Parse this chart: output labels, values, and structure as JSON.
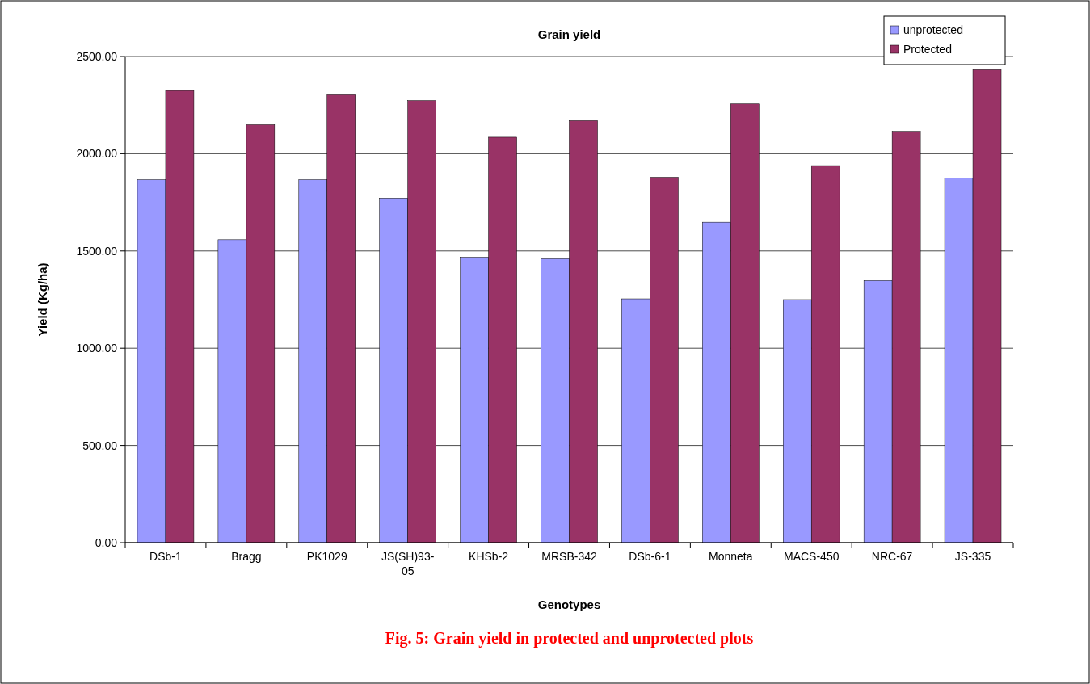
{
  "chart_data": {
    "type": "bar",
    "title": "Grain yield",
    "xlabel": "Genotypes",
    "ylabel": "Yield (Kg/ha)",
    "categories": [
      "DSb-1",
      "Bragg",
      "PK1029",
      "JS(SH)93-05",
      "KHSb-2",
      "MRSB-342",
      "DSb-6-1",
      "Monneta",
      "MACS-450",
      "NRC-67",
      "JS-335"
    ],
    "series": [
      {
        "name": "unprotected",
        "color": "#9999ff",
        "values": [
          1866,
          1558,
          1866,
          1772,
          1468,
          1460,
          1254,
          1648,
          1250,
          1348,
          1875
        ]
      },
      {
        "name": "Protected",
        "color": "#993366",
        "values": [
          2325,
          2149,
          2303,
          2273,
          2085,
          2170,
          1879,
          2256,
          1939,
          2115,
          2432
        ]
      }
    ],
    "ylim": [
      0,
      2500
    ],
    "yticks": [
      {
        "value": 0,
        "label": "0.00"
      },
      {
        "value": 500,
        "label": "500.00"
      },
      {
        "value": 1000,
        "label": "1000.00"
      },
      {
        "value": 1500,
        "label": "1500.00"
      },
      {
        "value": 2000,
        "label": "2000.00"
      },
      {
        "value": 2500,
        "label": "2500.00"
      }
    ],
    "grid": "y",
    "legend": "top right",
    "annotations": [
      "Fig. 5: Grain yield in protected and unprotected plots"
    ]
  }
}
